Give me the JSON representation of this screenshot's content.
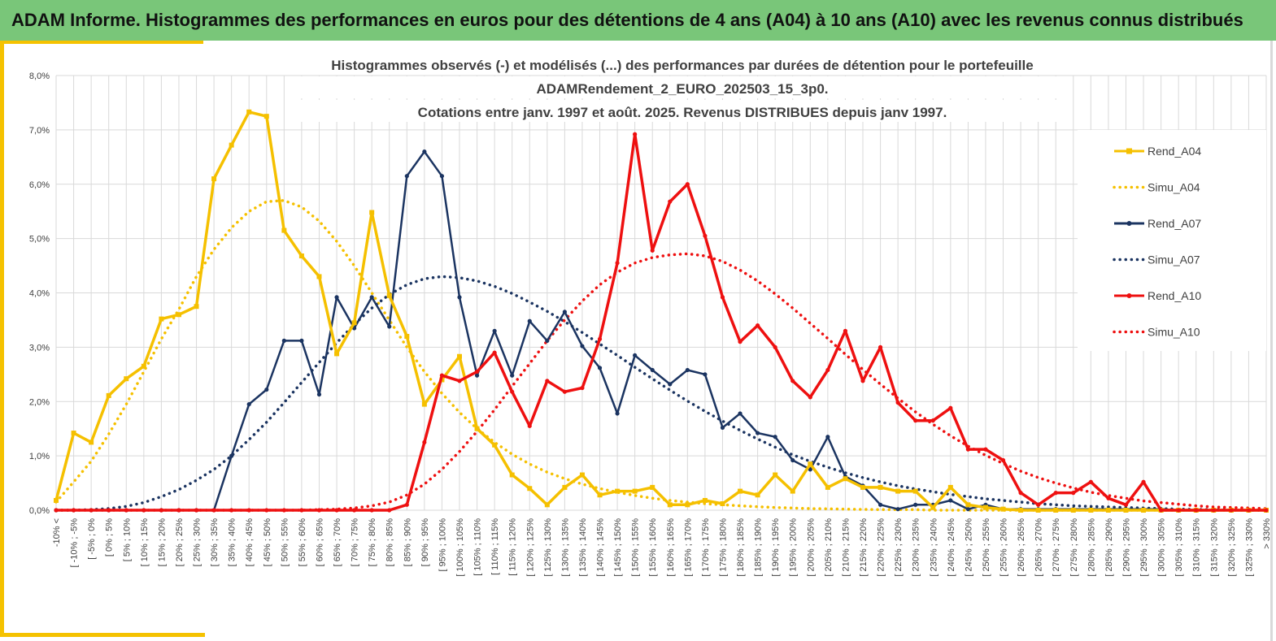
{
  "header": {
    "title": "ADAM Informe. Histogrammes des performances en euros pour des détentions de 4 ans (A04) à 10 ans (A10) avec les revenus connus distribués"
  },
  "colors": {
    "banner": "#79c679",
    "accent_yellow": "#f5c200",
    "A04": "#f5c000",
    "A07": "#1b3461",
    "A10": "#ee1010"
  },
  "chart_data": {
    "type": "line",
    "title_lines": [
      "Histogrammes observés (-) et modélisés (...) des performances par durées de détention pour le portefeuille",
      "ADAMRendement_2_EURO_202503_15_3p0.",
      "Cotations entre janv. 1997 et août. 2025. Revenus DISTRIBUES depuis janv 1997."
    ],
    "y_ticks": [
      "0,0%",
      "1,0%",
      "2,0%",
      "3,0%",
      "4,0%",
      "5,0%",
      "6,0%",
      "7,0%",
      "8,0%"
    ],
    "ylim": [
      0,
      8
    ],
    "y_unit": "%",
    "grid": true,
    "legend_position": "right",
    "categories": [
      "-10% <",
      "[ -10% ; -5%",
      "[ -5% ; 0%",
      "[ 0% ; 5%",
      "[ 5% ; 10%",
      "[ 10% ; 15%",
      "[ 15% ; 20%",
      "[ 20% ; 25%",
      "[ 25% ; 30%",
      "[ 30% ; 35%",
      "[ 35% ; 40%",
      "[ 40% ; 45%",
      "[ 45% ; 50%",
      "[ 50% ; 55%",
      "[ 55% ; 60%",
      "[ 60% ; 65%",
      "[ 65% ; 70%",
      "[ 70% ; 75%",
      "[ 75% ; 80%",
      "[ 80% ; 85%",
      "[ 85% ; 90%",
      "[ 90% ; 95%",
      "[ 95% ; 100%",
      "[ 100% ; 105%",
      "[ 105% ; 110%",
      "[ 110% ; 115%",
      "[ 115% ; 120%",
      "[ 120% ; 125%",
      "[ 125% ; 130%",
      "[ 130% ; 135%",
      "[ 135% ; 140%",
      "[ 140% ; 145%",
      "[ 145% ; 150%",
      "[ 150% ; 155%",
      "[ 155% ; 160%",
      "[ 160% ; 165%",
      "[ 165% ; 170%",
      "[ 170% ; 175%",
      "[ 175% ; 180%",
      "[ 180% ; 185%",
      "[ 185% ; 190%",
      "[ 190% ; 195%",
      "[ 195% ; 200%",
      "[ 200% ; 205%",
      "[ 205% ; 210%",
      "[ 210% ; 215%",
      "[ 215% ; 220%",
      "[ 220% ; 225%",
      "[ 225% ; 230%",
      "[ 230% ; 235%",
      "[ 235% ; 240%",
      "[ 240% ; 245%",
      "[ 245% ; 250%",
      "[ 250% ; 255%",
      "[ 255% ; 260%",
      "[ 260% ; 265%",
      "[ 265% ; 270%",
      "[ 270% ; 275%",
      "[ 275% ; 280%",
      "[ 280% ; 285%",
      "[ 285% ; 290%",
      "[ 290% ; 295%",
      "[ 295% ; 300%",
      "[ 300% ; 305%",
      "[ 305% ; 310%",
      "[ 310% ; 315%",
      "[ 315% ; 320%",
      "[ 320% ; 325%",
      "[ 325% ; 330%",
      "> 330%"
    ],
    "series": [
      {
        "name": "Rend_A04",
        "style": "solid",
        "color": "#f5c000",
        "values": [
          0.18,
          1.42,
          1.25,
          2.11,
          2.42,
          2.65,
          3.52,
          3.6,
          3.75,
          6.1,
          6.72,
          7.33,
          7.25,
          5.15,
          4.68,
          4.3,
          2.88,
          3.45,
          5.48,
          3.95,
          3.2,
          1.95,
          2.4,
          2.83,
          1.5,
          1.2,
          0.65,
          0.4,
          0.1,
          0.42,
          0.65,
          0.28,
          0.35,
          0.35,
          0.42,
          0.1,
          0.1,
          0.18,
          0.12,
          0.35,
          0.28,
          0.65,
          0.35,
          0.85,
          0.42,
          0.58,
          0.42,
          0.42,
          0.35,
          0.35,
          0.05,
          0.42,
          0.1,
          0.05,
          0.02,
          0,
          0,
          0,
          0,
          0,
          0,
          0,
          0,
          0,
          0,
          0,
          0,
          0,
          0,
          0
        ]
      },
      {
        "name": "Simu_A04",
        "style": "dotted",
        "color": "#f5c000",
        "values": [
          0.15,
          0.52,
          0.9,
          1.4,
          1.95,
          2.55,
          3.15,
          3.7,
          4.3,
          4.8,
          5.2,
          5.5,
          5.68,
          5.7,
          5.58,
          5.32,
          4.95,
          4.5,
          4.0,
          3.5,
          3.0,
          2.55,
          2.15,
          1.8,
          1.5,
          1.25,
          1.03,
          0.85,
          0.7,
          0.58,
          0.48,
          0.4,
          0.33,
          0.27,
          0.22,
          0.18,
          0.15,
          0.12,
          0.1,
          0.08,
          0.065,
          0.05,
          0.04,
          0.03,
          0.025,
          0.02,
          0.015,
          0.01,
          0.01,
          0.01,
          0,
          0,
          0,
          0,
          0,
          0,
          0,
          0,
          0,
          0,
          0,
          0,
          0,
          0,
          0,
          0,
          0,
          0,
          0,
          0
        ]
      },
      {
        "name": "Rend_A07",
        "style": "solid",
        "color": "#1b3461",
        "values": [
          0,
          0,
          0,
          0,
          0,
          0,
          0,
          0,
          0,
          0,
          1.0,
          1.95,
          2.22,
          3.12,
          3.12,
          2.13,
          3.92,
          3.35,
          3.92,
          3.38,
          6.15,
          6.6,
          6.15,
          3.92,
          2.48,
          3.3,
          2.48,
          3.48,
          3.12,
          3.65,
          3.02,
          2.62,
          1.78,
          2.85,
          2.58,
          2.32,
          2.58,
          2.5,
          1.52,
          1.78,
          1.42,
          1.35,
          0.92,
          0.75,
          1.35,
          0.62,
          0.45,
          0.1,
          0.02,
          0.1,
          0.1,
          0.18,
          0.02,
          0.1,
          0.02,
          0.02,
          0.02,
          0.02,
          0.02,
          0.02,
          0.02,
          0.02,
          0.02,
          0.02,
          0,
          0,
          0,
          0,
          0,
          0
        ]
      },
      {
        "name": "Simu_A07",
        "style": "dotted",
        "color": "#1b3461",
        "values": [
          0,
          0,
          0.01,
          0.03,
          0.07,
          0.14,
          0.25,
          0.38,
          0.55,
          0.75,
          1.0,
          1.3,
          1.62,
          1.98,
          2.35,
          2.72,
          3.08,
          3.42,
          3.72,
          3.97,
          4.15,
          4.26,
          4.3,
          4.28,
          4.22,
          4.12,
          3.99,
          3.83,
          3.66,
          3.47,
          3.27,
          3.06,
          2.85,
          2.63,
          2.42,
          2.21,
          2.01,
          1.82,
          1.64,
          1.47,
          1.31,
          1.16,
          1.02,
          0.9,
          0.79,
          0.69,
          0.6,
          0.52,
          0.45,
          0.39,
          0.34,
          0.29,
          0.25,
          0.21,
          0.18,
          0.15,
          0.12,
          0.1,
          0.08,
          0.07,
          0.06,
          0.05,
          0.04,
          0.03,
          0.02,
          0.015,
          0.01,
          0.01,
          0,
          0
        ]
      },
      {
        "name": "Rend_A10",
        "style": "solid",
        "color": "#ee1010",
        "values": [
          0,
          0,
          0,
          0,
          0,
          0,
          0,
          0,
          0,
          0,
          0,
          0,
          0,
          0,
          0,
          0,
          0,
          0,
          0,
          0,
          0.1,
          1.25,
          2.48,
          2.38,
          2.55,
          2.9,
          2.18,
          1.55,
          2.38,
          2.18,
          2.25,
          3.15,
          4.55,
          6.92,
          4.78,
          5.68,
          6.0,
          5.05,
          3.92,
          3.1,
          3.4,
          3.0,
          2.38,
          2.08,
          2.58,
          3.3,
          2.38,
          3.0,
          1.98,
          1.65,
          1.65,
          1.88,
          1.12,
          1.12,
          0.92,
          0.32,
          0.1,
          0.32,
          0.32,
          0.52,
          0.22,
          0.1,
          0.52,
          0,
          0,
          0,
          0,
          0,
          0,
          0
        ]
      },
      {
        "name": "Simu_A10",
        "style": "dotted",
        "color": "#ee1010",
        "values": [
          0,
          0,
          0,
          0,
          0,
          0,
          0,
          0,
          0,
          0,
          0,
          0,
          0,
          0,
          0,
          0.01,
          0.02,
          0.04,
          0.08,
          0.15,
          0.28,
          0.48,
          0.75,
          1.08,
          1.45,
          1.85,
          2.28,
          2.7,
          3.12,
          3.5,
          3.85,
          4.15,
          4.38,
          4.55,
          4.65,
          4.7,
          4.72,
          4.68,
          4.58,
          4.42,
          4.22,
          3.98,
          3.72,
          3.44,
          3.16,
          2.87,
          2.59,
          2.32,
          2.06,
          1.81,
          1.58,
          1.37,
          1.18,
          1.01,
          0.86,
          0.72,
          0.6,
          0.5,
          0.41,
          0.33,
          0.27,
          0.22,
          0.17,
          0.14,
          0.11,
          0.08,
          0.06,
          0.05,
          0.04,
          0.03
        ]
      }
    ]
  }
}
